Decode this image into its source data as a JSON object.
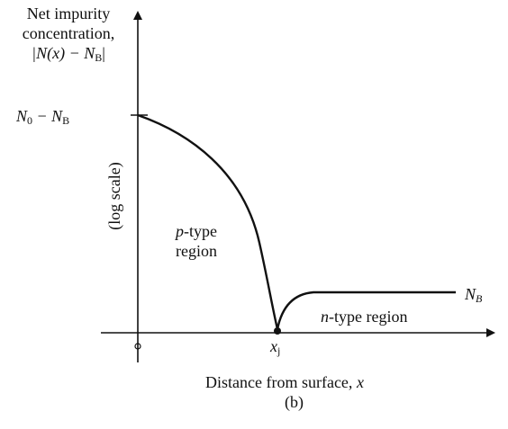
{
  "figure": {
    "y_axis_title_line1": "Net impurity",
    "y_axis_title_line2": "concentration,",
    "y_axis_title_line3": "|N(x) − N",
    "y_axis_title_line3_sub": "B",
    "y_axis_title_line3_end": "|",
    "y_scale_note": "(log scale)",
    "y_tick_main": "N",
    "y_tick_sub0": "0",
    "y_tick_mid": " − N",
    "y_tick_subB": "B",
    "p_region_italic": "p",
    "p_region_rest": "-type",
    "p_region_line2": "region",
    "n_region_italic": "n",
    "n_region_rest": "-type region",
    "nb_main": "N",
    "nb_sub": "B",
    "xj_main": "x",
    "xj_sub": "j",
    "x_axis_title": "Distance from surface, ",
    "x_axis_var": "x",
    "panel_label": "(b)"
  },
  "colors": {
    "ink": "#111111",
    "background": "#ffffff"
  }
}
